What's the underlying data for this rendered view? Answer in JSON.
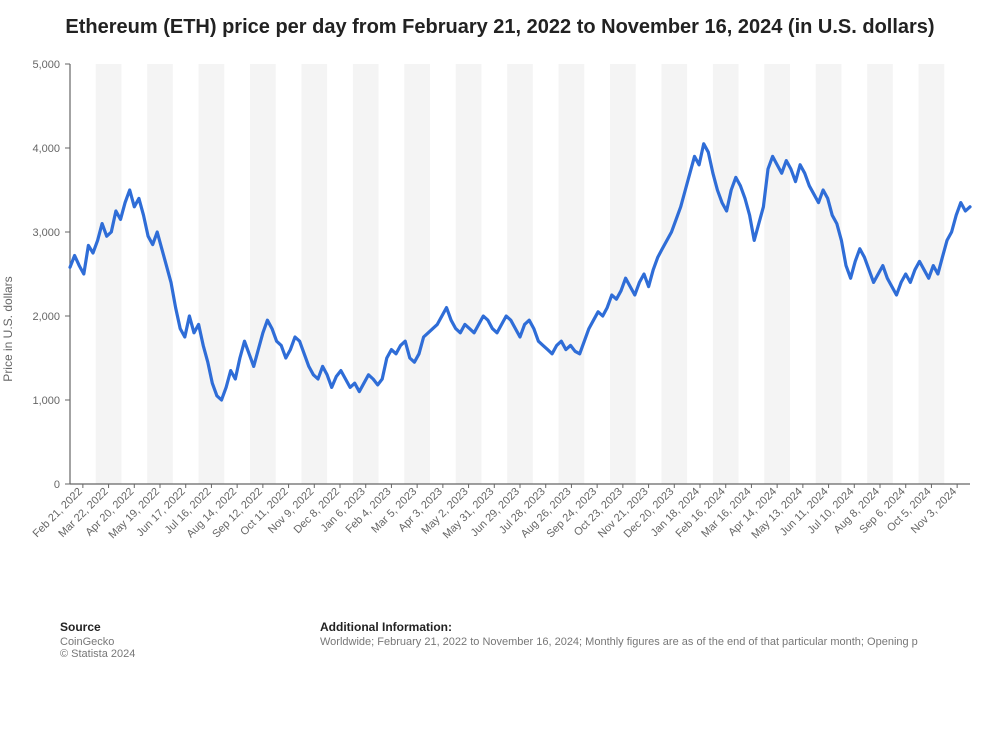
{
  "title": "Ethereum (ETH) price per day from February 21, 2022 to November 16, 2024 (in U.S. dollars)",
  "ylabel": "Price in U.S. dollars",
  "chart": {
    "type": "line",
    "line_color": "#2f6dd7",
    "line_width": 3.2,
    "background_color": "#ffffff",
    "plot_band_color": "#f4f4f4",
    "axis_color": "#666666",
    "tick_label_color": "#666666",
    "tick_fontsize": 11,
    "ylim": [
      0,
      5000
    ],
    "yticks": [
      0,
      1000,
      2000,
      3000,
      4000,
      5000
    ],
    "ytick_labels": [
      "0",
      "1,000",
      "2,000",
      "3,000",
      "4,000",
      "5,000"
    ],
    "x_labels": [
      "Feb 21, 2022",
      "Mar 22, 2022",
      "Apr 20, 2022",
      "May 19, 2022",
      "Jun 17, 2022",
      "Jul 16, 2022",
      "Aug 14, 2022",
      "Sep 12, 2022",
      "Oct 11, 2022",
      "Nov 9, 2022",
      "Dec 8, 2022",
      "Jan 6, 2023",
      "Feb 4, 2023",
      "Mar 5, 2023",
      "Apr 3, 2023",
      "May 2, 2023",
      "May 31, 2023",
      "Jun 29, 2023",
      "Jul 28, 2023",
      "Aug 26, 2023",
      "Sep 24, 2023",
      "Oct 23, 2023",
      "Nov 21, 2023",
      "Dec 20, 2023",
      "Jan 18, 2024",
      "Feb 16, 2024",
      "Mar 16, 2024",
      "Apr 14, 2024",
      "May 13, 2024",
      "Jun 11, 2024",
      "Jul 10, 2024",
      "Aug 8, 2024",
      "Sep 6, 2024",
      "Oct 5, 2024",
      "Nov 3, 2024"
    ],
    "series": [
      2580,
      2720,
      2600,
      2500,
      2840,
      2750,
      2900,
      3100,
      2950,
      3000,
      3250,
      3150,
      3350,
      3500,
      3300,
      3400,
      3200,
      2950,
      2850,
      3000,
      2800,
      2600,
      2400,
      2100,
      1850,
      1750,
      2000,
      1800,
      1900,
      1650,
      1450,
      1200,
      1050,
      1000,
      1150,
      1350,
      1250,
      1500,
      1700,
      1550,
      1400,
      1600,
      1800,
      1950,
      1850,
      1700,
      1650,
      1500,
      1600,
      1750,
      1700,
      1550,
      1400,
      1300,
      1250,
      1400,
      1300,
      1150,
      1280,
      1350,
      1250,
      1150,
      1200,
      1100,
      1200,
      1300,
      1250,
      1180,
      1250,
      1500,
      1600,
      1550,
      1650,
      1700,
      1500,
      1450,
      1550,
      1750,
      1800,
      1850,
      1900,
      2000,
      2100,
      1950,
      1850,
      1800,
      1900,
      1850,
      1800,
      1900,
      2000,
      1950,
      1850,
      1800,
      1900,
      2000,
      1950,
      1850,
      1750,
      1900,
      1950,
      1850,
      1700,
      1650,
      1600,
      1550,
      1650,
      1700,
      1600,
      1650,
      1580,
      1550,
      1700,
      1850,
      1950,
      2050,
      2000,
      2100,
      2250,
      2200,
      2300,
      2450,
      2350,
      2250,
      2400,
      2500,
      2350,
      2550,
      2700,
      2800,
      2900,
      3000,
      3150,
      3300,
      3500,
      3700,
      3900,
      3800,
      4050,
      3950,
      3700,
      3500,
      3350,
      3250,
      3500,
      3650,
      3550,
      3400,
      3200,
      2900,
      3100,
      3300,
      3750,
      3900,
      3800,
      3700,
      3850,
      3750,
      3600,
      3800,
      3700,
      3550,
      3450,
      3350,
      3500,
      3400,
      3200,
      3100,
      2900,
      2600,
      2450,
      2650,
      2800,
      2700,
      2550,
      2400,
      2500,
      2600,
      2450,
      2350,
      2250,
      2400,
      2500,
      2400,
      2550,
      2650,
      2550,
      2450,
      2600,
      2500,
      2700,
      2900,
      3000,
      3200,
      3350,
      3250,
      3300
    ]
  },
  "footer": {
    "source_hdr": "Source",
    "source_body": "CoinGecko",
    "copyright": "© Statista 2024",
    "info_hdr": "Additional Information:",
    "info_body": "Worldwide; February 21, 2022 to November 16, 2024; Monthly figures are as of the end of that particular month; Opening p"
  }
}
